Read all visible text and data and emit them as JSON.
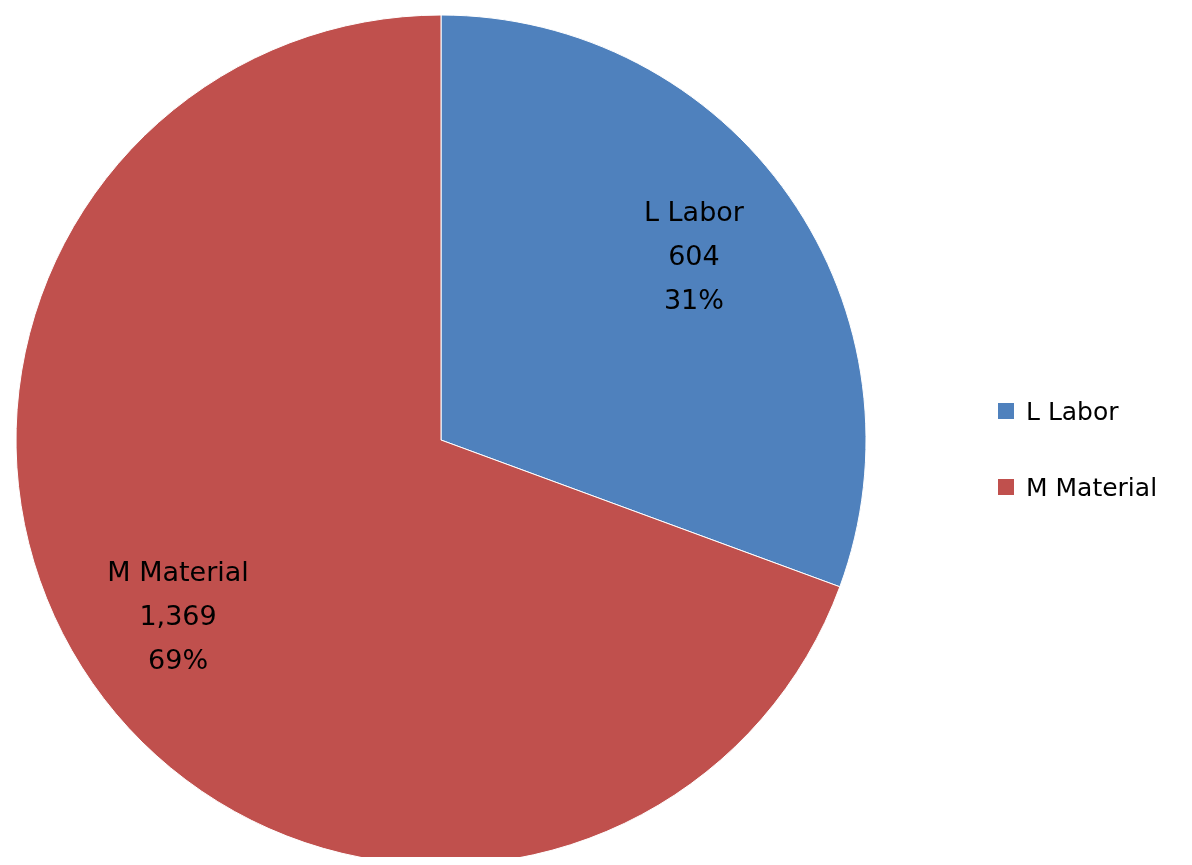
{
  "chart_data": {
    "type": "pie",
    "categories": [
      "L Labor",
      "M Material"
    ],
    "values": [
      604,
      1369
    ],
    "colors": [
      "#4f81bd",
      "#c0504d"
    ],
    "value_labels": [
      "604\n31%",
      "1,369\n69%"
    ],
    "legend": "right"
  }
}
